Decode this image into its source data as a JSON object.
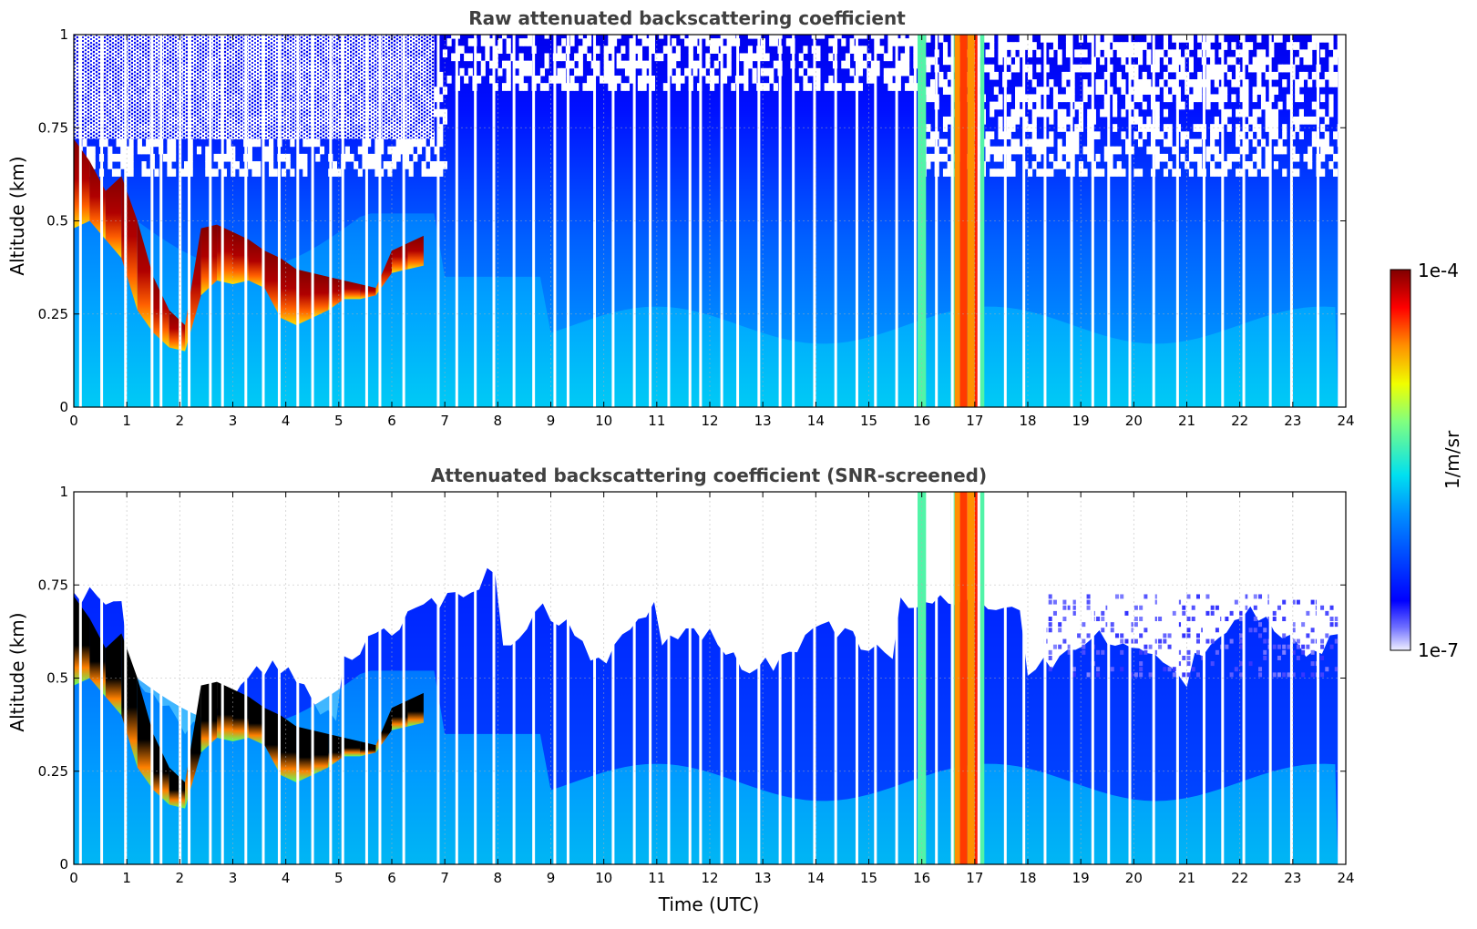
{
  "chart_data": [
    {
      "type": "heatmap",
      "title": "Raw attenuated backscattering coefficient",
      "xlabel": "",
      "ylabel": "Altitude (km)",
      "xlim": [
        0,
        24
      ],
      "ylim": [
        0,
        1
      ],
      "xticks": [
        "0",
        "1",
        "2",
        "3",
        "4",
        "5",
        "6",
        "7",
        "8",
        "9",
        "10",
        "11",
        "12",
        "13",
        "14",
        "15",
        "16",
        "17",
        "18",
        "19",
        "20",
        "21",
        "22",
        "23",
        "24"
      ],
      "yticks": [
        "0",
        "0.25",
        "0.5",
        "0.75",
        "1"
      ],
      "grid": true,
      "screened": false
    },
    {
      "type": "heatmap",
      "title": "Attenuated backscattering coefficient (SNR-screened)",
      "xlabel": "Time (UTC)",
      "ylabel": "Altitude (km)",
      "xlim": [
        0,
        24
      ],
      "ylim": [
        0,
        1
      ],
      "xticks": [
        "0",
        "1",
        "2",
        "3",
        "4",
        "5",
        "6",
        "7",
        "8",
        "9",
        "10",
        "11",
        "12",
        "13",
        "14",
        "15",
        "16",
        "17",
        "18",
        "19",
        "20",
        "21",
        "22",
        "23",
        "24"
      ],
      "yticks": [
        "0",
        "0.25",
        "0.5",
        "0.75",
        "1"
      ],
      "grid": true,
      "screened": true
    }
  ],
  "colorbar": {
    "label": "1/m/sr",
    "min_label": "1e-7",
    "max_label": "1e-4",
    "scale": "log",
    "colormap": "jet"
  },
  "cloud_layer": [
    {
      "t": 0.0,
      "base": 0.48,
      "top": 0.72
    },
    {
      "t": 0.3,
      "base": 0.5,
      "top": 0.66
    },
    {
      "t": 0.6,
      "base": 0.45,
      "top": 0.58
    },
    {
      "t": 0.9,
      "base": 0.4,
      "top": 0.62
    },
    {
      "t": 1.2,
      "base": 0.26,
      "top": 0.5
    },
    {
      "t": 1.5,
      "base": 0.2,
      "top": 0.35
    },
    {
      "t": 1.8,
      "base": 0.16,
      "top": 0.26
    },
    {
      "t": 2.1,
      "base": 0.15,
      "top": 0.22
    },
    {
      "t": 2.4,
      "base": 0.3,
      "top": 0.48
    },
    {
      "t": 2.7,
      "base": 0.34,
      "top": 0.49
    },
    {
      "t": 3.0,
      "base": 0.33,
      "top": 0.47
    },
    {
      "t": 3.3,
      "base": 0.34,
      "top": 0.45
    },
    {
      "t": 3.6,
      "base": 0.32,
      "top": 0.42
    },
    {
      "t": 3.9,
      "base": 0.24,
      "top": 0.4
    },
    {
      "t": 4.2,
      "base": 0.22,
      "top": 0.37
    },
    {
      "t": 4.5,
      "base": 0.24,
      "top": 0.36
    },
    {
      "t": 4.8,
      "base": 0.26,
      "top": 0.35
    },
    {
      "t": 5.1,
      "base": 0.29,
      "top": 0.34
    },
    {
      "t": 5.4,
      "base": 0.29,
      "top": 0.33
    },
    {
      "t": 5.7,
      "base": 0.3,
      "top": 0.32
    },
    {
      "t": 6.0,
      "base": 0.36,
      "top": 0.42
    },
    {
      "t": 6.3,
      "base": 0.37,
      "top": 0.44
    },
    {
      "t": 6.6,
      "base": 0.38,
      "top": 0.46
    }
  ],
  "data_gaps": [
    0.1,
    0.5,
    0.95,
    1.45,
    1.62,
    1.98,
    2.15,
    2.55,
    2.78,
    3.22,
    3.55,
    3.85,
    4.2,
    4.48,
    4.82,
    5.05,
    5.5,
    5.75,
    6.2,
    6.85,
    7.2,
    7.55,
    7.9,
    8.28,
    8.65,
    9.05,
    9.3,
    9.8,
    10.15,
    10.55,
    10.85,
    11.2,
    11.6,
    11.8,
    12.2,
    12.5,
    12.9,
    13.3,
    13.55,
    13.95,
    14.35,
    14.75,
    15.1,
    15.5,
    15.85,
    16.25,
    16.55,
    17.05,
    17.55,
    17.9,
    18.3,
    18.8,
    19.2,
    19.5,
    19.9,
    20.35,
    20.8,
    21.3,
    21.65,
    22.05,
    22.55,
    22.95,
    23.45,
    23.85
  ],
  "bright_columns": [
    {
      "t0": 15.92,
      "t1": 16.08,
      "level": 0.55
    },
    {
      "t0": 16.55,
      "t1": 16.62,
      "level": 0.55
    },
    {
      "t0": 16.62,
      "t1": 16.72,
      "level": 0.8
    },
    {
      "t0": 16.72,
      "t1": 16.86,
      "level": 0.86
    },
    {
      "t0": 16.86,
      "t1": 17.0,
      "level": 0.8
    },
    {
      "t0": 17.0,
      "t1": 17.1,
      "level": 0.88
    },
    {
      "t0": 17.1,
      "t1": 17.18,
      "level": 0.55
    }
  ]
}
